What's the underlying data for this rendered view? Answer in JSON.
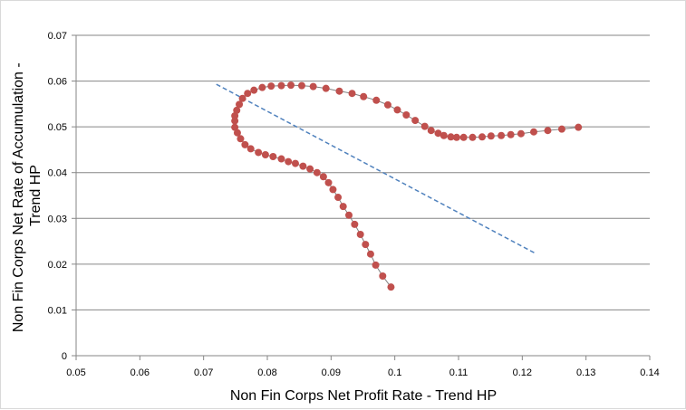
{
  "chart_data": {
    "type": "scatter",
    "xlabel": "Non Fin Corps Net Profit Rate - Trend HP",
    "ylabel_lines": [
      "Non Fin Corps Net Rate of Accumulation -",
      "Trend HP"
    ],
    "xlim": [
      0.05,
      0.14
    ],
    "ylim": [
      0,
      0.07
    ],
    "x_ticks": [
      "0.05",
      "0.06",
      "0.07",
      "0.08",
      "0.09",
      "0.1",
      "0.11",
      "0.12",
      "0.13",
      "0.14"
    ],
    "y_ticks": [
      "0",
      "0.01",
      "0.02",
      "0.03",
      "0.04",
      "0.05",
      "0.06",
      "0.07"
    ],
    "grid": "horizontal",
    "legend": "none",
    "series": [
      {
        "style": "markers-with-line",
        "color": "#c0504d",
        "line_color": "#7f7f7f",
        "points": [
          [
            0.0994,
            0.015
          ],
          [
            0.0981,
            0.0174
          ],
          [
            0.097,
            0.0198
          ],
          [
            0.0962,
            0.0222
          ],
          [
            0.0954,
            0.0243
          ],
          [
            0.0946,
            0.0265
          ],
          [
            0.0937,
            0.0287
          ],
          [
            0.0928,
            0.0307
          ],
          [
            0.0919,
            0.0326
          ],
          [
            0.0911,
            0.0346
          ],
          [
            0.0903,
            0.0363
          ],
          [
            0.0896,
            0.0378
          ],
          [
            0.0888,
            0.0391
          ],
          [
            0.0878,
            0.04
          ],
          [
            0.0867,
            0.0408
          ],
          [
            0.0856,
            0.0414
          ],
          [
            0.0844,
            0.042
          ],
          [
            0.0833,
            0.0424
          ],
          [
            0.0822,
            0.043
          ],
          [
            0.0809,
            0.0435
          ],
          [
            0.0797,
            0.0439
          ],
          [
            0.0786,
            0.0444
          ],
          [
            0.0774,
            0.0452
          ],
          [
            0.0765,
            0.0461
          ],
          [
            0.0758,
            0.0474
          ],
          [
            0.0753,
            0.0487
          ],
          [
            0.0749,
            0.0499
          ],
          [
            0.0749,
            0.0513
          ],
          [
            0.0749,
            0.0524
          ],
          [
            0.0752,
            0.0536
          ],
          [
            0.0756,
            0.0549
          ],
          [
            0.0761,
            0.0562
          ],
          [
            0.0769,
            0.0573
          ],
          [
            0.0779,
            0.058
          ],
          [
            0.0792,
            0.0586
          ],
          [
            0.0806,
            0.0589
          ],
          [
            0.0822,
            0.059
          ],
          [
            0.0837,
            0.0591
          ],
          [
            0.0854,
            0.059
          ],
          [
            0.0872,
            0.0588
          ],
          [
            0.0892,
            0.0584
          ],
          [
            0.0913,
            0.0578
          ],
          [
            0.0933,
            0.0573
          ],
          [
            0.0951,
            0.0566
          ],
          [
            0.0971,
            0.0558
          ],
          [
            0.0989,
            0.0548
          ],
          [
            0.1004,
            0.0537
          ],
          [
            0.1018,
            0.0526
          ],
          [
            0.1032,
            0.0514
          ],
          [
            0.1047,
            0.0501
          ],
          [
            0.1057,
            0.0492
          ],
          [
            0.1068,
            0.0486
          ],
          [
            0.1077,
            0.0481
          ],
          [
            0.1088,
            0.0478
          ],
          [
            0.1097,
            0.0477
          ],
          [
            0.1108,
            0.0477
          ],
          [
            0.1122,
            0.0477
          ],
          [
            0.1137,
            0.0478
          ],
          [
            0.1151,
            0.048
          ],
          [
            0.1167,
            0.0481
          ],
          [
            0.1182,
            0.0483
          ],
          [
            0.1198,
            0.0485
          ],
          [
            0.1218,
            0.0489
          ],
          [
            0.124,
            0.0492
          ],
          [
            0.1262,
            0.0495
          ],
          [
            0.1288,
            0.0499
          ]
        ]
      }
    ],
    "trendline": {
      "style": "dashed",
      "color": "#4f81bd",
      "from": [
        0.072,
        0.0593
      ],
      "to": [
        0.122,
        0.0224
      ]
    }
  }
}
